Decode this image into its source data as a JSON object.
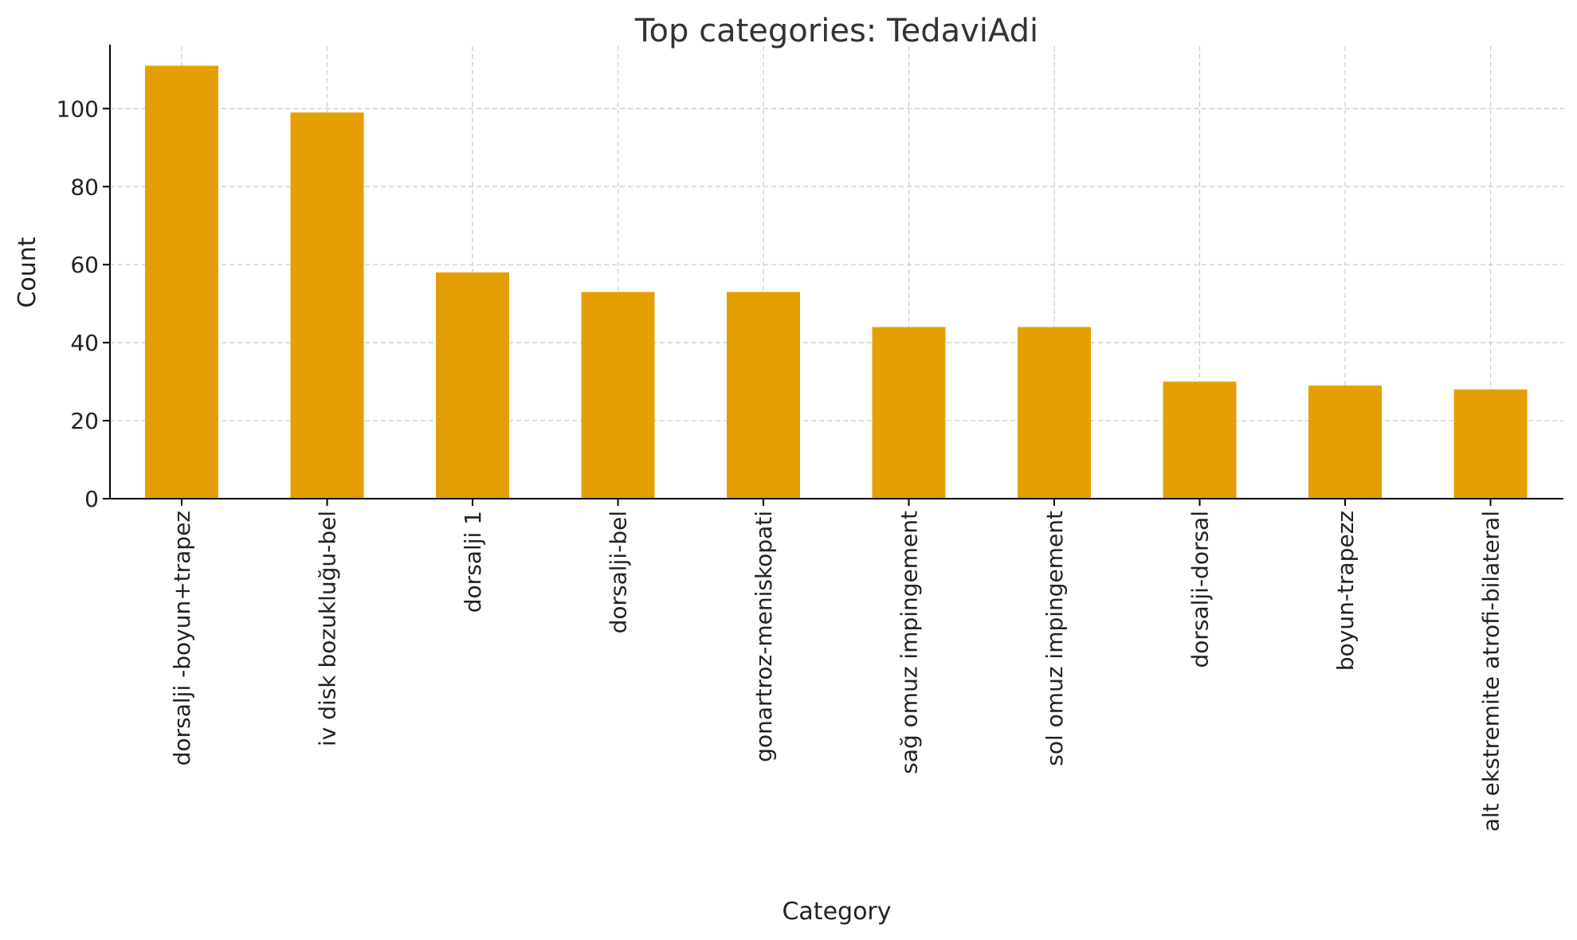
{
  "chart_data": {
    "type": "bar",
    "title": "Top categories: TedaviAdi",
    "xlabel": "Category",
    "ylabel": "Count",
    "categories": [
      "dorsalji -boyun+trapez",
      "i̇v di̇sk bozukluğu-bel",
      "dorsalji 1",
      "dorsalji-bel",
      "gonartroz-meniskopati",
      "sağ omuz i̇mpi̇ngement",
      "sol omuz i̇mpi̇ngement",
      "dorsalji-dorsal",
      "boyun-trapezz",
      "alt ekstremite atrofi-bilateral"
    ],
    "values": [
      111,
      99,
      58,
      53,
      53,
      44,
      44,
      30,
      29,
      28
    ],
    "ylim": [
      0,
      116
    ],
    "yticks": [
      0,
      20,
      40,
      60,
      80,
      100
    ],
    "grid": true,
    "bar_color": "#E69F00"
  }
}
